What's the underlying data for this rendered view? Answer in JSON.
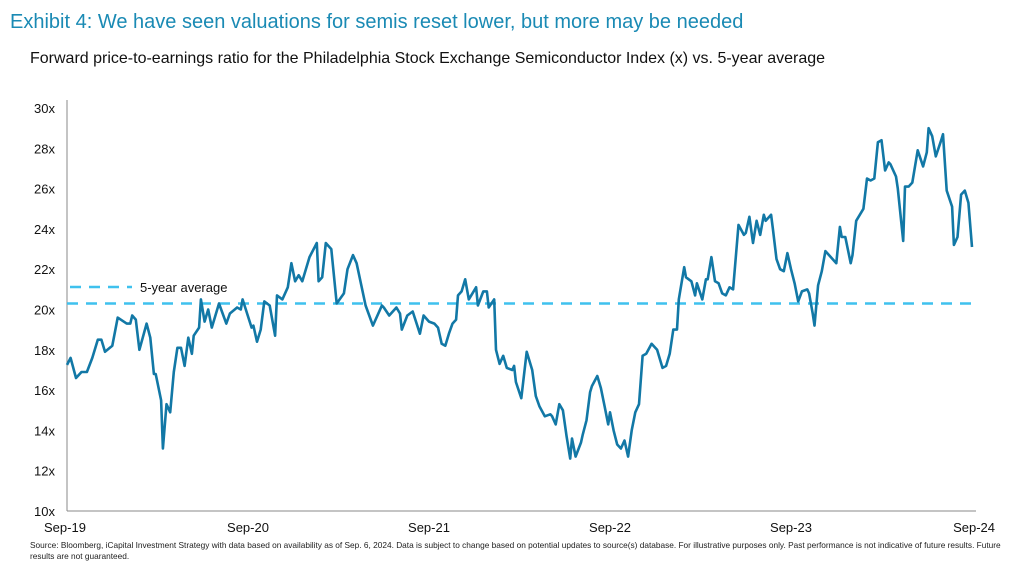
{
  "title": "Exhibit 4: We have seen valuations for semis reset lower, but more may be needed",
  "subtitle": "Forward price-to-earnings ratio for the Philadelphia Stock Exchange Semiconductor Index (x) vs. 5-year average",
  "source": "Source: Bloomberg, iCapital Investment Strategy with data based on availability as of Sep. 6, 2024. Data is subject to change based on potential updates to source(s) database. For illustrative purposes only. Past performance is not indicative of future results. Future results are not guaranteed.",
  "colors": {
    "series": "#1278a6",
    "average": "#3fc1ee",
    "title": "#1a8ab4"
  },
  "chart_data": {
    "type": "line",
    "title": "",
    "xlabel": "",
    "ylabel": "",
    "ylim": [
      10,
      30
    ],
    "xlim": [
      2019.67,
      2024.67
    ],
    "y_ticks": [
      10,
      12,
      14,
      16,
      18,
      20,
      22,
      24,
      26,
      28,
      30
    ],
    "y_tick_labels": [
      "10x",
      "12x",
      "14x",
      "16x",
      "18x",
      "20x",
      "22x",
      "24x",
      "26x",
      "28x",
      "30x"
    ],
    "x_ticks": [
      2019.67,
      2020.67,
      2021.67,
      2022.67,
      2023.67,
      2024.67
    ],
    "x_tick_labels": [
      "Sep-19",
      "Sep-20",
      "Sep-21",
      "Sep-22",
      "Sep-23",
      "Sep-24"
    ],
    "grid": false,
    "legend": {
      "placement": "left",
      "entries": [
        "5-year average"
      ]
    },
    "average": {
      "name": "5-year average",
      "value": 20.3,
      "style": "dashed"
    },
    "series": [
      {
        "x": [
          2019.67,
          2019.69,
          2019.72,
          2019.75,
          2019.78,
          2019.81,
          2019.84,
          2019.86,
          2019.88,
          2019.92,
          2019.95,
          2020.0,
          2020.02,
          2020.03,
          2020.05,
          2020.07,
          2020.11,
          2020.13,
          2020.15,
          2020.16,
          2020.19,
          2020.2,
          2020.22,
          2020.24,
          2020.26,
          2020.28,
          2020.3,
          2020.32,
          2020.34,
          2020.36,
          2020.37,
          2020.4,
          2020.41,
          2020.43,
          2020.45,
          2020.47,
          2020.51,
          2020.55,
          2020.57,
          2020.61,
          2020.63,
          2020.64,
          2020.69,
          2020.7,
          2020.72,
          2020.74,
          2020.76,
          2020.79,
          2020.82,
          2020.83,
          2020.86,
          2020.89,
          2020.91,
          2020.93,
          2020.95,
          2020.97,
          2021.01,
          2021.05,
          2021.06,
          2021.08,
          2021.1,
          2021.13,
          2021.16,
          2021.2,
          2021.22,
          2021.25,
          2021.27,
          2021.32,
          2021.36,
          2021.41,
          2021.42,
          2021.45,
          2021.49,
          2021.51,
          2021.52,
          2021.55,
          2021.58,
          2021.62,
          2021.64,
          2021.67,
          2021.7,
          2021.72,
          2021.74,
          2021.76,
          2021.78,
          2021.8,
          2021.82,
          2021.83,
          2021.85,
          2021.87,
          2021.89,
          2021.93,
          2021.94,
          2021.97,
          2021.99,
          2022.0,
          2022.03,
          2022.04,
          2022.06,
          2022.08,
          2022.1,
          2022.13,
          2022.14,
          2022.15,
          2022.18,
          2022.21,
          2022.24,
          2022.26,
          2022.28,
          2022.31,
          2022.34,
          2022.35,
          2022.37,
          2022.39,
          2022.41,
          2022.43,
          2022.45,
          2022.46,
          2022.48,
          2022.51,
          2022.52,
          2022.54,
          2022.56,
          2022.57,
          2022.6,
          2022.62,
          2022.64,
          2022.66,
          2022.67,
          2022.69,
          2022.71,
          2022.73,
          2022.75,
          2022.77,
          2022.79,
          2022.81,
          2022.83,
          2022.85,
          2022.87,
          2022.9,
          2022.93,
          2022.96,
          2022.98,
          2023.0,
          2023.02,
          2023.04,
          2023.05,
          2023.08,
          2023.09,
          2023.12,
          2023.14,
          2023.15,
          2023.18,
          2023.2,
          2023.21,
          2023.23,
          2023.25,
          2023.27,
          2023.29,
          2023.31,
          2023.33,
          2023.35,
          2023.38,
          2023.41,
          2023.42,
          2023.44,
          2023.46,
          2023.48,
          2023.5,
          2023.52,
          2023.53,
          2023.56,
          2023.57,
          2023.59,
          2023.61,
          2023.63,
          2023.65,
          2023.67,
          2023.69,
          2023.71,
          2023.73,
          2023.76,
          2023.77,
          2023.79,
          2023.8,
          2023.82,
          2023.84,
          2023.86,
          2023.92,
          2023.94,
          2023.95,
          2023.97,
          2024.0,
          2024.01,
          2024.03,
          2024.07,
          2024.09,
          2024.11,
          2024.13,
          2024.15,
          2024.17,
          2024.19,
          2024.21,
          2024.22,
          2024.25,
          2024.26,
          2024.29,
          2024.3,
          2024.32,
          2024.34,
          2024.37,
          2024.4,
          2024.42,
          2024.43,
          2024.45,
          2024.47,
          2024.5,
          2024.51,
          2024.53,
          2024.56,
          2024.57,
          2024.59,
          2024.61,
          2024.63,
          2024.65,
          2024.67
        ],
        "y": [
          17.25,
          17.6,
          16.6,
          16.9,
          16.9,
          17.6,
          18.5,
          18.5,
          17.9,
          18.2,
          19.6,
          19.3,
          19.3,
          19.7,
          19.5,
          18.0,
          19.3,
          18.6,
          16.8,
          16.8,
          15.5,
          13.1,
          15.3,
          14.9,
          16.9,
          18.1,
          18.1,
          17.2,
          18.6,
          17.8,
          18.7,
          19.1,
          20.5,
          19.4,
          20.0,
          19.1,
          20.3,
          19.3,
          19.8,
          20.1,
          20.0,
          20.5,
          19.1,
          19.2,
          18.4,
          19.0,
          20.4,
          20.2,
          18.7,
          20.7,
          20.5,
          21.1,
          22.3,
          21.4,
          21.7,
          21.4,
          22.6,
          23.3,
          21.4,
          21.6,
          23.3,
          23.0,
          20.3,
          20.8,
          22.0,
          22.7,
          22.3,
          20.2,
          19.2,
          20.2,
          20.1,
          19.7,
          20.1,
          19.8,
          19.0,
          19.7,
          19.9,
          18.8,
          19.7,
          19.4,
          19.3,
          19.1,
          18.3,
          18.2,
          18.8,
          19.3,
          19.5,
          20.7,
          20.9,
          21.5,
          20.5,
          21.1,
          20.2,
          20.9,
          20.9,
          20.1,
          20.5,
          18.0,
          17.3,
          17.7,
          17.1,
          17.0,
          17.2,
          16.4,
          15.6,
          17.9,
          17.0,
          15.7,
          15.2,
          14.7,
          14.8,
          14.7,
          14.3,
          15.3,
          15.0,
          13.7,
          12.6,
          13.6,
          12.7,
          13.4,
          13.8,
          14.5,
          15.9,
          16.2,
          16.7,
          16.1,
          15.2,
          14.3,
          14.9,
          14.0,
          13.3,
          13.1,
          13.5,
          12.7,
          14.0,
          14.9,
          15.3,
          17.7,
          17.8,
          18.3,
          18.0,
          17.1,
          17.2,
          17.8,
          19.0,
          19.0,
          20.5,
          22.1,
          21.6,
          21.4,
          20.7,
          21.3,
          20.5,
          21.5,
          21.5,
          22.6,
          21.4,
          21.3,
          20.8,
          20.7,
          21.1,
          21.0,
          24.2,
          23.7,
          23.8,
          24.6,
          23.3,
          24.4,
          23.7,
          24.7,
          24.4,
          24.7,
          24.0,
          22.5,
          22.0,
          21.9,
          22.8,
          22.0,
          21.3,
          20.4,
          20.9,
          21.0,
          20.8,
          19.8,
          19.2,
          21.2,
          21.9,
          22.9,
          22.3,
          24.1,
          23.6,
          23.6,
          22.3,
          22.7,
          24.4,
          25.0,
          26.5,
          26.4,
          26.5,
          28.3,
          28.4,
          26.9,
          27.3,
          27.2,
          26.6,
          26.0,
          23.4,
          26.1,
          26.1,
          26.3,
          27.9,
          27.1,
          27.8,
          29.0,
          28.6,
          27.6,
          28.4,
          28.7,
          25.9,
          25.1,
          23.2,
          23.6,
          25.7,
          25.9,
          25.3,
          23.1
        ]
      }
    ]
  }
}
